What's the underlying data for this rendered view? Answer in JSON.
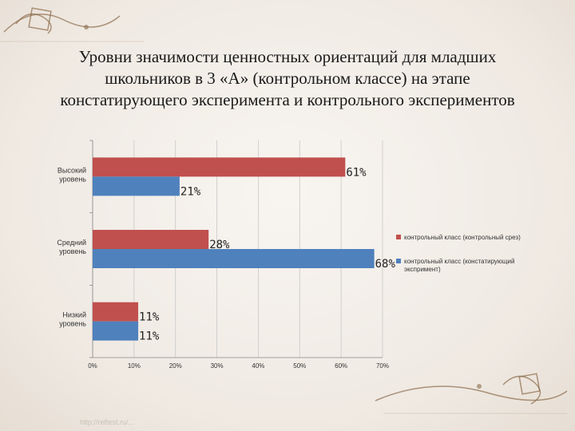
{
  "slide": {
    "title_lines": [
      "Уровни значимости ценностных ориентаций для младших",
      "школьников в 3 «А» (контрольном классе) на этапе",
      "констатирующего эксперимента и контрольного  экспериментов"
    ],
    "footer_url": "http://reftest.ru/..."
  },
  "colors": {
    "series_red": "#c0504d",
    "series_blue": "#4f81bd",
    "ornament": "#8b6b4a"
  },
  "chart_data": {
    "type": "bar",
    "orientation": "horizontal",
    "categories": [
      {
        "lines": [
          "Высокий",
          "уровень"
        ]
      },
      {
        "lines": [
          "Средний",
          "уровень"
        ]
      },
      {
        "lines": [
          "Низкий",
          "уровень"
        ]
      }
    ],
    "series": [
      {
        "name": "контрольный класс (контрольный срез)",
        "legend_lines": [
          "контрольный класс (контрольный срез)"
        ],
        "color": "#c0504d",
        "values": [
          61,
          28,
          11
        ],
        "labels": [
          "61%",
          "28%",
          "11%"
        ]
      },
      {
        "name": "контрольный класс (констатирующий экспримент)",
        "legend_lines": [
          "контрольный класс (констатирующий",
          "экспримент)"
        ],
        "color": "#4f81bd",
        "values": [
          21,
          68,
          11
        ],
        "labels": [
          "21%",
          "68%",
          "11%"
        ]
      }
    ],
    "x_ticks": [
      "0%",
      "10%",
      "20%",
      "30%",
      "40%",
      "50%",
      "60%",
      "70%"
    ],
    "xlim": [
      0,
      70
    ],
    "legend_position": "right",
    "grid": true
  }
}
